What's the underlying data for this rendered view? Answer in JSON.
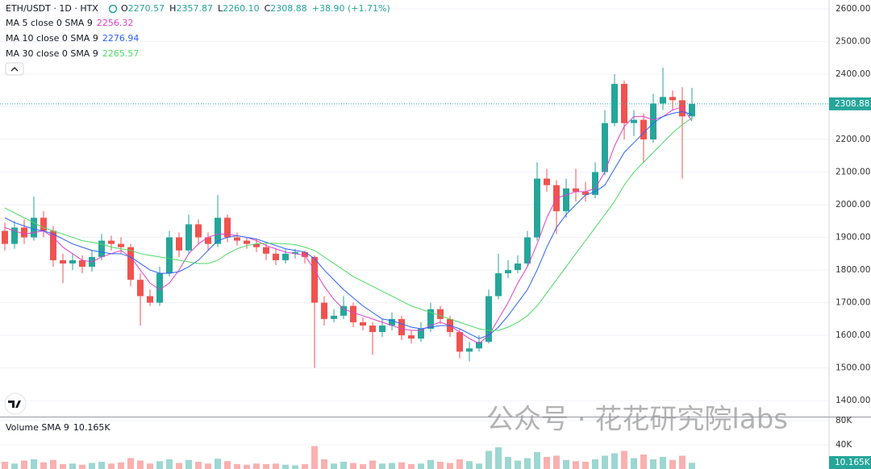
{
  "header": {
    "symbol": "ETH/USDT · 1D · HTX",
    "ohlc": [
      {
        "label": "O",
        "value": "2270.57"
      },
      {
        "label": "H",
        "value": "2357.87"
      },
      {
        "label": "L",
        "value": "2260.10"
      },
      {
        "label": "C",
        "value": "2308.88"
      }
    ],
    "change": "+38.90 (+1.71%)"
  },
  "watermark": "公众号 · 花花研究院labs",
  "chart_data": {
    "type": "candlestick",
    "color_up": "#26a69a",
    "color_down": "#ef5350",
    "grid": true,
    "ylim": [
      1351,
      2627
    ],
    "yticks": [
      {
        "value": 1400,
        "label": "1400.00"
      },
      {
        "value": 1500,
        "label": "1500.00"
      },
      {
        "value": 1600,
        "label": "1600.00"
      },
      {
        "value": 1700,
        "label": "1700.00"
      },
      {
        "value": 1800,
        "label": "1800.00"
      },
      {
        "value": 1900,
        "label": "1900.00"
      },
      {
        "value": 2000,
        "label": "2000.00"
      },
      {
        "value": 2100,
        "label": "2100.00"
      },
      {
        "value": 2200,
        "label": "2200.00"
      },
      {
        "value": 2300,
        "label": "2300.00"
      },
      {
        "value": 2400,
        "label": "2400.00"
      },
      {
        "value": 2500,
        "label": "2500.00"
      },
      {
        "value": 2600,
        "label": "2600.00"
      }
    ],
    "open": [
      1920,
      1880,
      1930,
      1900,
      1960,
      1920,
      1830,
      1820,
      1830,
      1810,
      1840,
      1890,
      1880,
      1870,
      1770,
      1720,
      1700,
      1790,
      1900,
      1860,
      1940,
      1900,
      1880,
      1960,
      1900,
      1890,
      1880,
      1870,
      1850,
      1830,
      1850,
      1855,
      1840,
      1700,
      1650,
      1660,
      1690,
      1640,
      1630,
      1610,
      1630,
      1650,
      1600,
      1590,
      1620,
      1680,
      1650,
      1610,
      1550,
      1560,
      1580,
      1720,
      1790,
      1800,
      1820,
      1900,
      2080,
      2060,
      1980,
      2050,
      2040,
      2030,
      2100,
      2250,
      2370,
      2250,
      2260,
      2200,
      2310,
      2330,
      2320,
      2270.57
    ],
    "high": [
      1945,
      1950,
      1955,
      2025,
      1980,
      1935,
      1850,
      1850,
      1845,
      1860,
      1910,
      1905,
      1900,
      1880,
      1790,
      1740,
      1810,
      1920,
      1915,
      1970,
      1955,
      1915,
      2030,
      1970,
      1915,
      1900,
      1895,
      1880,
      1865,
      1865,
      1865,
      1860,
      1845,
      1720,
      1680,
      1720,
      1700,
      1655,
      1640,
      1650,
      1670,
      1660,
      1615,
      1640,
      1700,
      1690,
      1660,
      1620,
      1580,
      1600,
      1740,
      1850,
      1830,
      1845,
      1920,
      2130,
      2110,
      2075,
      2080,
      2110,
      2070,
      2130,
      2290,
      2400,
      2380,
      2290,
      2280,
      2340,
      2420,
      2350,
      2360,
      2357.87
    ],
    "low": [
      1860,
      1865,
      1880,
      1890,
      1900,
      1810,
      1760,
      1800,
      1790,
      1795,
      1830,
      1860,
      1850,
      1750,
      1630,
      1690,
      1690,
      1780,
      1840,
      1850,
      1880,
      1860,
      1870,
      1885,
      1875,
      1865,
      1855,
      1830,
      1815,
      1820,
      1835,
      1820,
      1500,
      1630,
      1640,
      1650,
      1625,
      1615,
      1540,
      1595,
      1615,
      1585,
      1575,
      1580,
      1610,
      1635,
      1595,
      1530,
      1520,
      1550,
      1575,
      1710,
      1775,
      1790,
      1810,
      1890,
      2040,
      1910,
      1960,
      2010,
      2010,
      2020,
      2090,
      2240,
      2200,
      2210,
      2130,
      2190,
      2290,
      2290,
      2080,
      2260.1
    ],
    "close": [
      1880,
      1930,
      1900,
      1960,
      1920,
      1830,
      1820,
      1830,
      1810,
      1840,
      1890,
      1880,
      1870,
      1770,
      1720,
      1700,
      1790,
      1900,
      1860,
      1940,
      1900,
      1880,
      1960,
      1900,
      1890,
      1880,
      1870,
      1850,
      1830,
      1850,
      1855,
      1840,
      1700,
      1650,
      1660,
      1690,
      1640,
      1630,
      1610,
      1630,
      1650,
      1600,
      1590,
      1620,
      1680,
      1650,
      1610,
      1550,
      1560,
      1580,
      1720,
      1790,
      1800,
      1820,
      1900,
      2080,
      2060,
      1980,
      2050,
      2040,
      2030,
      2100,
      2250,
      2370,
      2250,
      2260,
      2200,
      2310,
      2330,
      2320,
      2270.57,
      2308.88
    ],
    "indicators": [
      {
        "name": "MA 5 close 0 SMA 9",
        "value_label": "2256.32",
        "color": "#e040c8",
        "values": [
          1930,
          1920,
          1910,
          1915,
          1920,
          1900,
          1870,
          1850,
          1830,
          1825,
          1840,
          1850,
          1860,
          1840,
          1800,
          1760,
          1740,
          1760,
          1800,
          1850,
          1880,
          1900,
          1910,
          1910,
          1905,
          1900,
          1890,
          1875,
          1865,
          1855,
          1850,
          1845,
          1800,
          1750,
          1710,
          1680,
          1670,
          1660,
          1650,
          1640,
          1630,
          1620,
          1615,
          1615,
          1630,
          1640,
          1630,
          1610,
          1590,
          1575,
          1600,
          1650,
          1700,
          1760,
          1810,
          1880,
          1960,
          2020,
          2030,
          2040,
          2040,
          2050,
          2100,
          2180,
          2240,
          2270,
          2270,
          2260,
          2270,
          2290,
          2300,
          2256.32
        ]
      },
      {
        "name": "MA 10 close 0 SMA 9",
        "value_label": "2276.94",
        "color": "#2962ff",
        "values": [
          1960,
          1945,
          1935,
          1925,
          1920,
          1910,
          1895,
          1880,
          1870,
          1860,
          1855,
          1850,
          1850,
          1840,
          1820,
          1800,
          1790,
          1790,
          1795,
          1810,
          1830,
          1860,
          1890,
          1900,
          1905,
          1900,
          1895,
          1885,
          1875,
          1865,
          1860,
          1855,
          1835,
          1800,
          1770,
          1740,
          1715,
          1690,
          1670,
          1650,
          1645,
          1635,
          1625,
          1620,
          1625,
          1630,
          1630,
          1620,
          1605,
          1590,
          1600,
          1625,
          1660,
          1700,
          1740,
          1800,
          1870,
          1930,
          1970,
          2000,
          2030,
          2040,
          2060,
          2110,
          2160,
          2190,
          2220,
          2250,
          2270,
          2280,
          2285,
          2276.94
        ]
      },
      {
        "name": "MA 30 close 0 SMA 9",
        "value_label": "2265.57",
        "color": "#4cd964",
        "values": [
          1990,
          1975,
          1960,
          1945,
          1930,
          1920,
          1910,
          1900,
          1890,
          1885,
          1880,
          1870,
          1865,
          1860,
          1850,
          1845,
          1840,
          1835,
          1830,
          1825,
          1820,
          1820,
          1830,
          1850,
          1865,
          1875,
          1880,
          1882,
          1882,
          1880,
          1878,
          1870,
          1860,
          1840,
          1820,
          1800,
          1780,
          1765,
          1750,
          1735,
          1720,
          1705,
          1690,
          1680,
          1670,
          1660,
          1650,
          1640,
          1630,
          1620,
          1615,
          1615,
          1625,
          1640,
          1660,
          1690,
          1730,
          1770,
          1810,
          1850,
          1890,
          1930,
          1970,
          2010,
          2060,
          2100,
          2130,
          2160,
          2190,
          2220,
          2245,
          2265.57
        ]
      }
    ],
    "volume": {
      "name": "Volume SMA 9",
      "value_label": "10.165K",
      "ylim": [
        0,
        85333
      ],
      "yticks": [
        {
          "value": 40000,
          "label": "40K"
        },
        {
          "value": 80000,
          "label": "80K"
        }
      ],
      "values": [
        12000,
        9000,
        14000,
        16000,
        11000,
        15000,
        8000,
        9000,
        7000,
        10000,
        12000,
        9000,
        11000,
        18000,
        14000,
        9000,
        13000,
        16000,
        10000,
        15000,
        12000,
        9000,
        17000,
        13000,
        8000,
        7000,
        9000,
        8000,
        9000,
        7000,
        6000,
        8000,
        38000,
        16000,
        9000,
        12000,
        10000,
        8000,
        14000,
        9000,
        10000,
        11000,
        8000,
        9000,
        15000,
        12000,
        10000,
        16000,
        13000,
        9000,
        30000,
        36000,
        20000,
        14000,
        18000,
        28000,
        20000,
        22000,
        15000,
        13000,
        12000,
        16000,
        22000,
        26000,
        30000,
        18000,
        24000,
        16000,
        20000,
        15000,
        22000,
        10165
      ]
    }
  }
}
